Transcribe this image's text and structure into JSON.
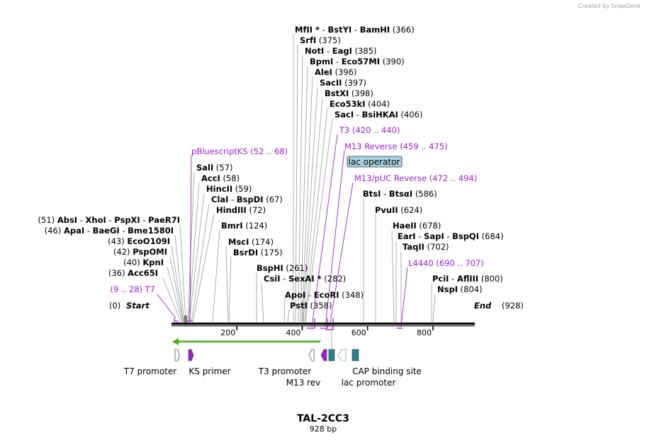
{
  "watermark": "Created by SnapGene",
  "map": {
    "name": "TAL-2CC3",
    "length_label": "928 bp",
    "start": {
      "pos": "(0)",
      "name": "Start"
    },
    "end": {
      "name": "End",
      "pos": "(928)"
    },
    "ticks": [
      {
        "label": "200",
        "bp": 200
      },
      {
        "label": "400",
        "bp": 400
      },
      {
        "label": "600",
        "bp": 600
      },
      {
        "label": "800",
        "bp": 800
      }
    ]
  },
  "sites_left": [
    {
      "pos": "(51)",
      "parts": [
        "AbsI",
        "XhoI",
        "PspXI",
        "PaeR7I"
      ],
      "bp": 51
    },
    {
      "pos": "(46)",
      "parts": [
        "ApaI",
        "BaeGI",
        "Bme1580I"
      ],
      "bp": 46
    },
    {
      "pos": "(43)",
      "parts": [
        "EcoO109I"
      ],
      "bp": 43
    },
    {
      "pos": "(42)",
      "parts": [
        "PspOMI"
      ],
      "bp": 42
    },
    {
      "pos": "(40)",
      "parts": [
        "KpnI"
      ],
      "bp": 40
    },
    {
      "pos": "(36)",
      "parts": [
        "Acc65I"
      ],
      "bp": 36
    }
  ],
  "sites_right": [
    {
      "parts": [
        "MfII *",
        "BstYI",
        "BamHI"
      ],
      "pos": "(366)",
      "bp": 366
    },
    {
      "parts": [
        "SrfI"
      ],
      "pos": "(375)",
      "bp": 375
    },
    {
      "parts": [
        "NotI",
        "EagI"
      ],
      "pos": "(385)",
      "bp": 385
    },
    {
      "parts": [
        "BpmI",
        "Eco57MI"
      ],
      "pos": "(390)",
      "bp": 390
    },
    {
      "parts": [
        "AleI"
      ],
      "pos": "(396)",
      "bp": 396
    },
    {
      "parts": [
        "SacII"
      ],
      "pos": "(397)",
      "bp": 397
    },
    {
      "parts": [
        "BstXI"
      ],
      "pos": "(398)",
      "bp": 398
    },
    {
      "parts": [
        "Eco53kI"
      ],
      "pos": "(404)",
      "bp": 404
    },
    {
      "parts": [
        "SacI",
        "BsiHKAI"
      ],
      "pos": "(406)",
      "bp": 406
    },
    {
      "parts": [
        "SalI"
      ],
      "pos": "(57)",
      "bp": 57
    },
    {
      "parts": [
        "AccI"
      ],
      "pos": "(58)",
      "bp": 58
    },
    {
      "parts": [
        "HincII"
      ],
      "pos": "(59)",
      "bp": 59
    },
    {
      "parts": [
        "ClaI",
        "BspDI"
      ],
      "pos": "(67)",
      "bp": 67
    },
    {
      "parts": [
        "HindIII"
      ],
      "pos": "(72)",
      "bp": 72
    },
    {
      "parts": [
        "BmrI"
      ],
      "pos": "(124)",
      "bp": 124
    },
    {
      "parts": [
        "MscI"
      ],
      "pos": "(174)",
      "bp": 174
    },
    {
      "parts": [
        "BsrDI"
      ],
      "pos": "(175)",
      "bp": 175
    },
    {
      "parts": [
        "BspHI"
      ],
      "pos": "(261)",
      "bp": 261
    },
    {
      "parts": [
        "CsiI",
        "SexAI *"
      ],
      "pos": "(282)",
      "bp": 282
    },
    {
      "parts": [
        "ApoI",
        "EcoRI"
      ],
      "pos": "(348)",
      "bp": 348
    },
    {
      "parts": [
        "PstI"
      ],
      "pos": "(358)",
      "bp": 358
    },
    {
      "parts": [
        "BtsI",
        "BtsαI"
      ],
      "pos": "(586)",
      "bp": 586
    },
    {
      "parts": [
        "PvuII"
      ],
      "pos": "(624)",
      "bp": 624
    },
    {
      "parts": [
        "HaeII"
      ],
      "pos": "(678)",
      "bp": 678
    },
    {
      "parts": [
        "EarI",
        "SapI",
        "BspQI"
      ],
      "pos": "(684)",
      "bp": 684
    },
    {
      "parts": [
        "TaqII"
      ],
      "pos": "(702)",
      "bp": 702
    },
    {
      "parts": [
        "PciI",
        "AflIII"
      ],
      "pos": "(800)",
      "bp": 800
    },
    {
      "parts": [
        "NspI"
      ],
      "pos": "(804)",
      "bp": 804
    }
  ],
  "primers": [
    {
      "name": "T3",
      "range": "(420 .. 440)",
      "from": 420,
      "to": 440
    },
    {
      "name": "M13 Reverse",
      "range": "(459 .. 475)",
      "from": 459,
      "to": 475
    },
    {
      "name": "M13/pUC Reverse",
      "range": "(472 .. 494)",
      "from": 472,
      "to": 494
    },
    {
      "name": "pBluescriptKS",
      "range": "(52 .. 68)",
      "from": 52,
      "to": 68
    },
    {
      "name": "L4440",
      "range": "(690 .. 707)",
      "from": 690,
      "to": 707
    },
    {
      "name": "T7",
      "range": "(9 .. 28)",
      "from": 9,
      "to": 28
    }
  ],
  "lac_operator": "lac operator",
  "features": [
    {
      "name": "T7 promoter"
    },
    {
      "name": "KS primer"
    },
    {
      "name": "T3 promoter"
    },
    {
      "name": "M13 rev"
    },
    {
      "name": "lac promoter"
    },
    {
      "name": "CAP binding site"
    }
  ],
  "colors": {
    "primer": "#a020d0",
    "feature_teal": "#2e7f8f",
    "lac_box": "#a8d4e0",
    "orf_green": "#4caf1a"
  }
}
